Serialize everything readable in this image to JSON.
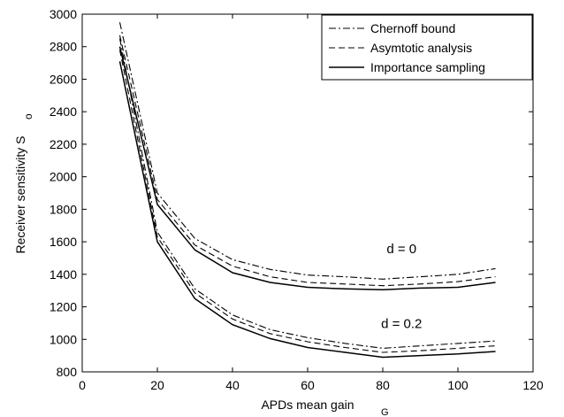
{
  "chart_data": {
    "type": "line",
    "title": "",
    "xlabel": "APDs mean gain",
    "xlabel_sub": "G",
    "ylabel": "Receiver sensitivity  S",
    "ylabel_sub": "o",
    "xlim": [
      0,
      120
    ],
    "ylim": [
      800,
      3000
    ],
    "xticks": [
      0,
      20,
      40,
      60,
      80,
      100,
      120
    ],
    "yticks": [
      800,
      1000,
      1200,
      1400,
      1600,
      1800,
      2000,
      2200,
      2400,
      2600,
      2800,
      3000
    ],
    "grid": false,
    "legend_position": "top-right",
    "legend": [
      {
        "label": "Chernoff bound",
        "style": "dash-dot"
      },
      {
        "label": "Asymtotic analysis",
        "style": "dashed"
      },
      {
        "label": "Importance sampling",
        "style": "solid"
      }
    ],
    "annotations": [
      {
        "text": "d = 0",
        "x": 85,
        "y": 1530
      },
      {
        "text": "d = 0.2",
        "x": 85,
        "y": 1070
      }
    ],
    "series": [
      {
        "group": "d = 0",
        "legend_index": 0,
        "x": [
          10,
          20,
          30,
          40,
          50,
          60,
          70,
          80,
          90,
          100,
          110
        ],
        "y": [
          2950,
          1900,
          1620,
          1490,
          1430,
          1395,
          1385,
          1370,
          1385,
          1400,
          1435
        ]
      },
      {
        "group": "d = 0",
        "legend_index": 1,
        "x": [
          10,
          20,
          30,
          40,
          50,
          60,
          70,
          80,
          90,
          100,
          110
        ],
        "y": [
          2870,
          1860,
          1580,
          1450,
          1385,
          1350,
          1340,
          1330,
          1340,
          1355,
          1385
        ]
      },
      {
        "group": "d = 0",
        "legend_index": 2,
        "x": [
          10,
          20,
          30,
          40,
          50,
          60,
          70,
          80,
          90,
          100,
          110
        ],
        "y": [
          2800,
          1830,
          1550,
          1410,
          1350,
          1320,
          1310,
          1305,
          1315,
          1320,
          1350
        ]
      },
      {
        "group": "d = 0.2",
        "legend_index": 0,
        "x": [
          10,
          20,
          30,
          40,
          50,
          60,
          70,
          80,
          90,
          100,
          110
        ],
        "y": [
          2850,
          1660,
          1310,
          1150,
          1060,
          1010,
          975,
          945,
          960,
          975,
          990
        ]
      },
      {
        "group": "d = 0.2",
        "legend_index": 1,
        "x": [
          10,
          20,
          30,
          40,
          50,
          60,
          70,
          80,
          90,
          100,
          110
        ],
        "y": [
          2780,
          1630,
          1285,
          1125,
          1035,
          985,
          950,
          920,
          930,
          945,
          960
        ]
      },
      {
        "group": "d = 0.2",
        "legend_index": 2,
        "x": [
          10,
          20,
          30,
          40,
          50,
          60,
          70,
          80,
          90,
          100,
          110
        ],
        "y": [
          2710,
          1600,
          1250,
          1090,
          1005,
          950,
          920,
          890,
          900,
          910,
          925
        ]
      }
    ]
  }
}
